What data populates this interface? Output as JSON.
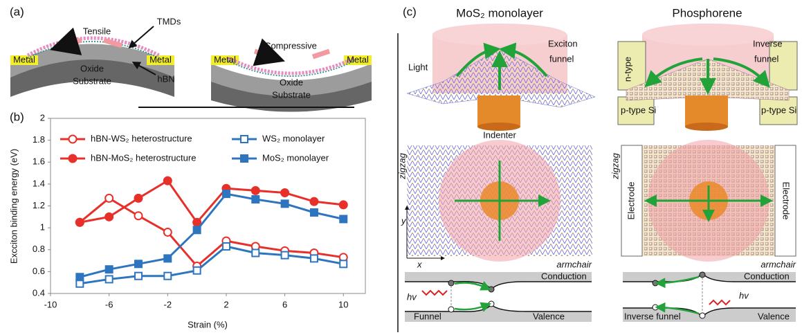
{
  "panel_a": {
    "label": "(a)",
    "left": {
      "strain": "Tensile",
      "tmd": "TMDs",
      "metal_left": "Metal",
      "metal_right": "Metal",
      "oxide": "Oxide",
      "substrate": "Substrate",
      "hbn": "hBN"
    },
    "right": {
      "strain": "Compressive",
      "metal_left": "Metal",
      "metal_right": "Metal",
      "oxide": "Oxide",
      "substrate": "Substrate"
    }
  },
  "chart_data": {
    "type": "line",
    "label": "(b)",
    "xlabel": "Strain (%)",
    "ylabel": "Excciton binding energy (eV)",
    "x": [
      -8,
      -6,
      -4,
      -2,
      0,
      2,
      4,
      6,
      8,
      10
    ],
    "series": [
      {
        "name": "hBN-WS₂ heterostructure",
        "color": "#e8302a",
        "marker": "circle",
        "filled": false,
        "values": [
          1.05,
          1.27,
          1.11,
          0.96,
          0.65,
          0.88,
          0.83,
          0.79,
          0.77,
          0.73
        ]
      },
      {
        "name": "hBN-MoS₂ heterostructure",
        "color": "#e8302a",
        "marker": "circle",
        "filled": true,
        "values": [
          1.05,
          1.1,
          1.27,
          1.43,
          1.05,
          1.36,
          1.34,
          1.32,
          1.24,
          1.21
        ]
      },
      {
        "name": "WS₂ monolayer",
        "color": "#2e75c0",
        "marker": "square",
        "filled": false,
        "values": [
          0.49,
          0.53,
          0.56,
          0.56,
          0.61,
          0.83,
          0.77,
          0.75,
          0.72,
          0.67
        ]
      },
      {
        "name": "MoS₂ monolayer",
        "color": "#2e75c0",
        "marker": "square",
        "filled": true,
        "values": [
          0.55,
          0.62,
          0.67,
          0.72,
          0.98,
          1.31,
          1.26,
          1.22,
          1.14,
          1.08
        ]
      }
    ],
    "xlim": [
      -10,
      11.5
    ],
    "xticks": [
      -10,
      -6,
      -2,
      2,
      6,
      10
    ],
    "ylim": [
      0.4,
      2
    ],
    "yticks": [
      0.4,
      0.6,
      0.8,
      1,
      1.2,
      1.4,
      1.6,
      1.8,
      2
    ]
  },
  "panel_c": {
    "label": "(c)",
    "left": {
      "title": "MoS₂ monolayer",
      "light": "Light",
      "funnel_1": "Exciton",
      "funnel_2": "funnel",
      "indenter": "Indenter",
      "zigzag": "zigzag",
      "y": "y",
      "x": "x",
      "armchair": "armchair",
      "conduction": "Conduction",
      "valence": "Valence",
      "hv": "hv",
      "funnel": "Funnel"
    },
    "right": {
      "title": "Phosphorene",
      "funnel_1": "Inverse",
      "funnel_2": "funnel",
      "n_type": "n-type",
      "p_type_left": "p-type Si",
      "p_type_right": "p-type Si",
      "zigzag": "zigzag",
      "electrode_left": "Electrode",
      "electrode_right": "Electrode",
      "armchair": "armchair",
      "conduction": "Conduction",
      "valence": "Valence",
      "hv": "hv",
      "funnel": "Inverse funnel"
    }
  }
}
